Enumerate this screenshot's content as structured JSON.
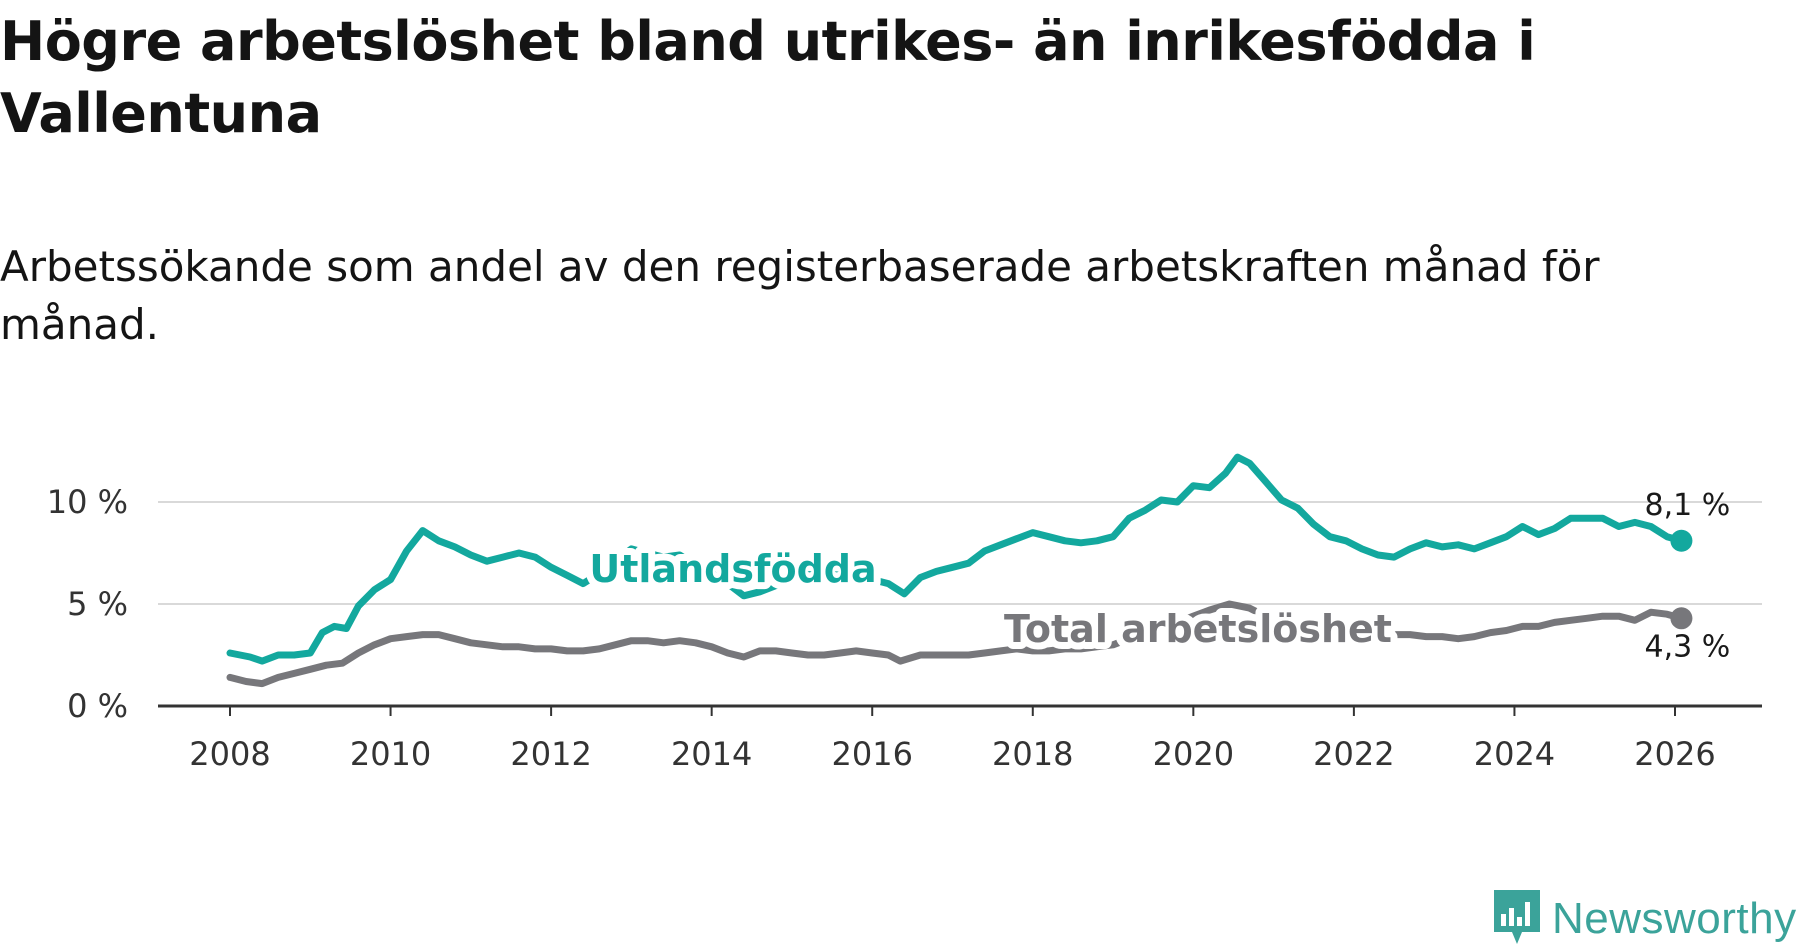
{
  "header": {
    "title": "Högre arbetslöshet bland utrikes- än inrikesfödda i Vallentuna",
    "subtitle": "Arbetssökande som andel av den registerbaserade arbetskraften månad för månad."
  },
  "brand": {
    "name": "Newsworthy",
    "icon": "newsworthy-logo-icon",
    "color": "#3ba39a"
  },
  "chart_data": {
    "type": "line",
    "title": "Högre arbetslöshet bland utrikes- än inrikesfödda i Vallentuna",
    "subtitle": "Arbetssökande som andel av den registerbaserade arbetskraften månad för månad.",
    "xlabel": "",
    "ylabel": "",
    "xlim": [
      2007.2,
      2027.3
    ],
    "ylim": [
      0,
      12.5
    ],
    "x_ticks": [
      2008,
      2010,
      2012,
      2014,
      2016,
      2018,
      2020,
      2022,
      2024,
      2026
    ],
    "x_tick_labels": [
      "2008",
      "2010",
      "2012",
      "2014",
      "2016",
      "2018",
      "2020",
      "2022",
      "2024",
      "2026"
    ],
    "y_ticks": [
      0,
      5,
      10
    ],
    "y_tick_labels": [
      "0 %",
      "5 %",
      "10 %"
    ],
    "grid": "horizontal",
    "series": [
      {
        "name": "Utlandsfödda",
        "color": "#13a89e",
        "end_label": "8,1 %",
        "x": [
          2008.0,
          2008.25,
          2008.4,
          2008.6,
          2008.8,
          2009.0,
          2009.15,
          2009.3,
          2009.45,
          2009.6,
          2009.8,
          2010.0,
          2010.2,
          2010.4,
          2010.6,
          2010.8,
          2011.0,
          2011.2,
          2011.4,
          2011.6,
          2011.8,
          2012.0,
          2012.2,
          2012.4,
          2012.6,
          2012.8,
          2013.0,
          2013.2,
          2013.4,
          2013.6,
          2013.8,
          2014.0,
          2014.2,
          2014.4,
          2014.6,
          2014.8,
          2015.0,
          2015.2,
          2015.4,
          2015.6,
          2015.8,
          2016.0,
          2016.2,
          2016.4,
          2016.6,
          2016.8,
          2017.0,
          2017.2,
          2017.4,
          2017.6,
          2017.8,
          2018.0,
          2018.2,
          2018.4,
          2018.6,
          2018.8,
          2019.0,
          2019.2,
          2019.4,
          2019.6,
          2019.8,
          2020.0,
          2020.2,
          2020.4,
          2020.55,
          2020.7,
          2020.9,
          2021.1,
          2021.3,
          2021.5,
          2021.7,
          2021.9,
          2022.1,
          2022.3,
          2022.5,
          2022.7,
          2022.9,
          2023.1,
          2023.3,
          2023.5,
          2023.7,
          2023.9,
          2024.1,
          2024.3,
          2024.5,
          2024.7,
          2024.9,
          2025.1,
          2025.3,
          2025.5,
          2025.7,
          2025.9,
          2026.08
        ],
        "values": [
          2.6,
          2.4,
          2.2,
          2.5,
          2.5,
          2.6,
          3.6,
          3.9,
          3.8,
          4.9,
          5.7,
          6.2,
          7.6,
          8.6,
          8.1,
          7.8,
          7.4,
          7.1,
          7.3,
          7.5,
          7.3,
          6.8,
          6.4,
          6.0,
          6.5,
          7.1,
          7.7,
          7.5,
          7.3,
          7.4,
          6.9,
          6.5,
          6.0,
          5.4,
          5.6,
          5.9,
          6.3,
          6.6,
          6.5,
          6.4,
          6.5,
          6.2,
          6.0,
          5.5,
          6.3,
          6.6,
          6.8,
          7.0,
          7.6,
          7.9,
          8.2,
          8.5,
          8.3,
          8.1,
          8.0,
          8.1,
          8.3,
          9.2,
          9.6,
          10.1,
          10.0,
          10.8,
          10.7,
          11.4,
          12.2,
          11.9,
          11.0,
          10.1,
          9.7,
          8.9,
          8.3,
          8.1,
          7.7,
          7.4,
          7.3,
          7.7,
          8.0,
          7.8,
          7.9,
          7.7,
          8.0,
          8.3,
          8.8,
          8.4,
          8.7,
          9.2,
          9.2,
          9.2,
          8.8,
          9.0,
          8.8,
          8.3,
          8.1
        ]
      },
      {
        "name": "Total arbetslöshet",
        "color": "#77777b",
        "end_label": "4,3 %",
        "x": [
          2008.0,
          2008.2,
          2008.4,
          2008.6,
          2008.8,
          2009.0,
          2009.2,
          2009.4,
          2009.6,
          2009.8,
          2010.0,
          2010.2,
          2010.4,
          2010.6,
          2010.8,
          2011.0,
          2011.2,
          2011.4,
          2011.6,
          2011.8,
          2012.0,
          2012.2,
          2012.4,
          2012.6,
          2012.8,
          2013.0,
          2013.2,
          2013.4,
          2013.6,
          2013.8,
          2014.0,
          2014.2,
          2014.4,
          2014.6,
          2014.8,
          2015.0,
          2015.2,
          2015.4,
          2015.6,
          2015.8,
          2016.0,
          2016.2,
          2016.35,
          2016.6,
          2016.8,
          2017.0,
          2017.2,
          2017.4,
          2017.6,
          2017.8,
          2018.0,
          2018.2,
          2018.4,
          2018.6,
          2018.8,
          2019.0,
          2019.2,
          2019.4,
          2019.6,
          2019.8,
          2020.0,
          2020.2,
          2020.45,
          2020.7,
          2020.9,
          2021.1,
          2021.3,
          2021.5,
          2021.7,
          2021.9,
          2022.1,
          2022.3,
          2022.5,
          2022.7,
          2022.9,
          2023.1,
          2023.3,
          2023.5,
          2023.7,
          2023.9,
          2024.1,
          2024.3,
          2024.5,
          2024.7,
          2024.9,
          2025.1,
          2025.3,
          2025.5,
          2025.7,
          2025.9,
          2026.08
        ],
        "values": [
          1.4,
          1.2,
          1.1,
          1.4,
          1.6,
          1.8,
          2.0,
          2.1,
          2.6,
          3.0,
          3.3,
          3.4,
          3.5,
          3.5,
          3.3,
          3.1,
          3.0,
          2.9,
          2.9,
          2.8,
          2.8,
          2.7,
          2.7,
          2.8,
          3.0,
          3.2,
          3.2,
          3.1,
          3.2,
          3.1,
          2.9,
          2.6,
          2.4,
          2.7,
          2.7,
          2.6,
          2.5,
          2.5,
          2.6,
          2.7,
          2.6,
          2.5,
          2.2,
          2.5,
          2.5,
          2.5,
          2.5,
          2.6,
          2.7,
          2.8,
          2.7,
          2.7,
          2.8,
          2.8,
          2.9,
          3.0,
          3.3,
          3.6,
          3.9,
          4.1,
          4.4,
          4.7,
          5.0,
          4.8,
          4.4,
          4.1,
          3.9,
          3.7,
          3.6,
          3.5,
          3.5,
          3.5,
          3.5,
          3.5,
          3.4,
          3.4,
          3.3,
          3.4,
          3.6,
          3.7,
          3.9,
          3.9,
          4.1,
          4.2,
          4.3,
          4.4,
          4.4,
          4.2,
          4.6,
          4.5,
          4.3
        ]
      }
    ]
  }
}
